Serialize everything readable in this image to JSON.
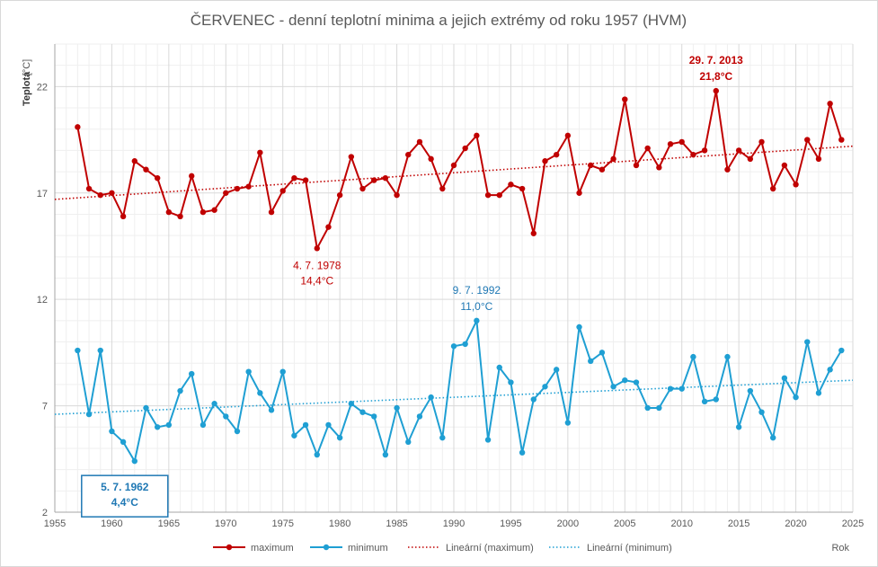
{
  "chart_data": {
    "type": "line",
    "title": "ČERVENEC - denní teplotní minima a jejich extrémy od roku 1957 (HVM)",
    "ylabel": "Teplota",
    "yunit": "[°C]",
    "xlabel": "Rok",
    "xlim": [
      1955,
      2025
    ],
    "ylim": [
      2,
      24
    ],
    "xticks": [
      1955,
      1960,
      1965,
      1970,
      1975,
      1980,
      1985,
      1990,
      1995,
      2000,
      2005,
      2010,
      2015,
      2020,
      2025
    ],
    "yticks": [
      2,
      7,
      12,
      17,
      22
    ],
    "grid": true,
    "legend_position": "bottom",
    "x": [
      1957,
      1958,
      1959,
      1960,
      1961,
      1962,
      1963,
      1964,
      1965,
      1966,
      1967,
      1968,
      1969,
      1970,
      1971,
      1972,
      1973,
      1974,
      1975,
      1976,
      1977,
      1978,
      1979,
      1980,
      1981,
      1982,
      1983,
      1984,
      1985,
      1986,
      1987,
      1988,
      1989,
      1990,
      1991,
      1992,
      1993,
      1994,
      1995,
      1996,
      1997,
      1998,
      1999,
      2000,
      2001,
      2002,
      2003,
      2004,
      2005,
      2006,
      2007,
      2008,
      2009,
      2010,
      2011,
      2012,
      2013,
      2014,
      2015,
      2016,
      2017,
      2018,
      2019,
      2020,
      2021,
      2022,
      2023,
      2024
    ],
    "series": [
      {
        "name": "maximum",
        "color": "#c00000",
        "style": "solid-markers",
        "values": [
          20.1,
          17.2,
          16.9,
          17.0,
          15.9,
          18.5,
          18.1,
          17.7,
          16.1,
          15.9,
          17.8,
          16.1,
          16.2,
          17.0,
          17.2,
          17.3,
          18.9,
          16.1,
          17.1,
          17.7,
          17.6,
          14.4,
          15.4,
          16.9,
          18.7,
          17.2,
          17.6,
          17.7,
          16.9,
          18.8,
          19.4,
          18.6,
          17.2,
          18.3,
          19.1,
          19.7,
          16.9,
          16.9,
          17.4,
          17.2,
          15.1,
          18.5,
          18.8,
          19.7,
          17.0,
          18.3,
          18.1,
          18.6,
          21.4,
          18.3,
          19.1,
          18.2,
          19.3,
          19.4,
          18.8,
          19.0,
          21.8,
          18.1,
          19.0,
          18.6,
          19.4,
          17.2,
          18.3,
          17.4,
          19.5,
          18.6,
          21.2,
          19.5
        ]
      },
      {
        "name": "minimum",
        "color": "#1f9fd3",
        "style": "solid-markers",
        "values": [
          9.6,
          6.6,
          9.6,
          5.8,
          5.3,
          4.4,
          6.9,
          6.0,
          6.1,
          7.7,
          8.5,
          6.1,
          7.1,
          6.5,
          5.8,
          8.6,
          7.6,
          6.8,
          8.6,
          5.6,
          6.1,
          4.7,
          6.1,
          5.5,
          7.1,
          6.7,
          6.5,
          4.7,
          6.9,
          5.3,
          6.5,
          7.4,
          5.5,
          9.8,
          9.9,
          11.0,
          5.4,
          8.8,
          8.1,
          4.8,
          7.3,
          7.9,
          8.7,
          6.2,
          10.7,
          9.1,
          9.5,
          7.9,
          8.2,
          8.1,
          6.9,
          6.9,
          7.8,
          7.8,
          9.3,
          7.2,
          7.3,
          9.3,
          6.0,
          7.7,
          6.7,
          5.5,
          8.3,
          7.4,
          10.0,
          7.6,
          8.7,
          9.6
        ]
      },
      {
        "name": "Lineární (maximum)",
        "color": "#c00000",
        "style": "dotted-trend",
        "trend": [
          16.7,
          19.2
        ]
      },
      {
        "name": "Lineární (minimum)",
        "color": "#1f9fd3",
        "style": "dotted-trend",
        "trend": [
          6.6,
          8.2
        ]
      }
    ],
    "annotations": [
      {
        "date": "29. 7. 2013",
        "value": "21,8°C",
        "x": 2013,
        "y": 21.8,
        "color": "#c00000",
        "bold": true,
        "boxed": false,
        "placement": "above"
      },
      {
        "date": "4. 7. 1978",
        "value": "14,4°C",
        "x": 1978,
        "y": 14.4,
        "color": "#c00000",
        "bold": false,
        "boxed": false,
        "placement": "below"
      },
      {
        "date": "9. 7. 1992",
        "value": "11,0°C",
        "x": 1992,
        "y": 11.0,
        "color": "#1f78b4",
        "bold": false,
        "boxed": false,
        "placement": "above"
      },
      {
        "date": "5. 7. 1962",
        "value": "4,4°C",
        "x": 1962,
        "y": 4.4,
        "color": "#1f78b4",
        "bold": true,
        "boxed": true,
        "placement": "below"
      }
    ]
  }
}
